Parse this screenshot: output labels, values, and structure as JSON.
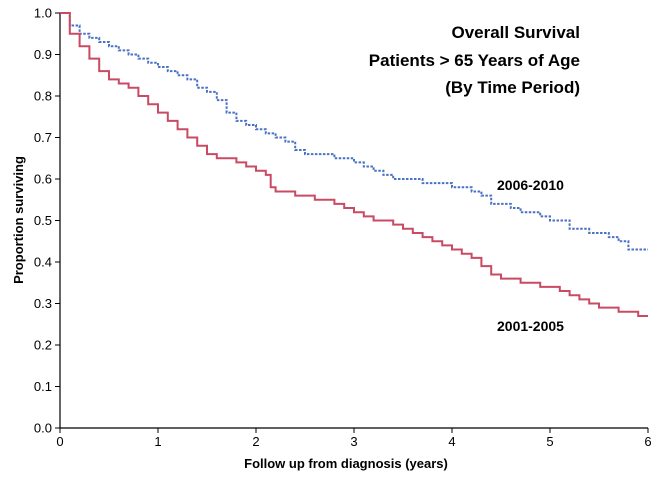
{
  "chart_data": {
    "type": "line",
    "title_lines": [
      "Overall Survival",
      "Patients > 65 Years of Age",
      "(By Time Period)"
    ],
    "xlabel": "Follow up from diagnosis (years)",
    "ylabel": "Proportion surviving",
    "xlim": [
      0,
      6
    ],
    "ylim": [
      0,
      1.0
    ],
    "x_ticks": [
      0,
      1,
      2,
      3,
      4,
      5,
      6
    ],
    "x_tick_labels": [
      "0",
      "1",
      "2",
      "3",
      "4",
      "5",
      "6"
    ],
    "y_ticks": [
      0,
      0.1,
      0.2,
      0.3,
      0.4,
      0.5,
      0.6,
      0.7,
      0.8,
      0.9,
      1.0
    ],
    "y_tick_labels": [
      "0.0",
      "0.1",
      "0.2",
      "0.3",
      "0.4",
      "0.5",
      "0.6",
      "0.7",
      "0.8",
      "0.9",
      "1.0"
    ],
    "grid": false,
    "series": [
      {
        "name": "2006-2010",
        "color": "#4a72c4",
        "line_style": "dotted-step",
        "x": [
          0,
          0.1,
          0.2,
          0.3,
          0.4,
          0.5,
          0.6,
          0.7,
          0.8,
          0.9,
          1.0,
          1.1,
          1.2,
          1.3,
          1.4,
          1.5,
          1.6,
          1.7,
          1.8,
          1.9,
          2.0,
          2.1,
          2.2,
          2.3,
          2.4,
          2.5,
          2.6,
          2.7,
          2.8,
          2.9,
          3.0,
          3.1,
          3.2,
          3.3,
          3.4,
          3.5,
          3.6,
          3.7,
          3.8,
          3.9,
          4.0,
          4.1,
          4.2,
          4.3,
          4.4,
          4.5,
          4.6,
          4.7,
          4.8,
          4.9,
          5.0,
          5.2,
          5.4,
          5.5,
          5.6,
          5.7,
          5.8,
          6.0
        ],
        "y": [
          1.0,
          0.97,
          0.95,
          0.94,
          0.93,
          0.92,
          0.91,
          0.9,
          0.89,
          0.88,
          0.87,
          0.86,
          0.85,
          0.84,
          0.82,
          0.81,
          0.79,
          0.76,
          0.74,
          0.73,
          0.72,
          0.71,
          0.7,
          0.69,
          0.67,
          0.66,
          0.66,
          0.66,
          0.65,
          0.65,
          0.64,
          0.63,
          0.62,
          0.61,
          0.6,
          0.6,
          0.6,
          0.59,
          0.59,
          0.59,
          0.58,
          0.58,
          0.57,
          0.56,
          0.54,
          0.54,
          0.53,
          0.52,
          0.52,
          0.51,
          0.5,
          0.48,
          0.47,
          0.47,
          0.46,
          0.45,
          0.43,
          0.43
        ]
      },
      {
        "name": "2001-2005",
        "color": "#c94a63",
        "line_style": "solid-step",
        "x": [
          0,
          0.1,
          0.2,
          0.3,
          0.4,
          0.5,
          0.6,
          0.7,
          0.8,
          0.9,
          1.0,
          1.1,
          1.2,
          1.3,
          1.4,
          1.5,
          1.6,
          1.7,
          1.8,
          1.9,
          2.0,
          2.1,
          2.15,
          2.2,
          2.3,
          2.4,
          2.5,
          2.6,
          2.7,
          2.8,
          2.9,
          3.0,
          3.1,
          3.2,
          3.3,
          3.4,
          3.5,
          3.6,
          3.7,
          3.8,
          3.9,
          4.0,
          4.1,
          4.2,
          4.3,
          4.4,
          4.5,
          4.6,
          4.7,
          4.8,
          4.9,
          5.0,
          5.1,
          5.2,
          5.3,
          5.4,
          5.5,
          5.6,
          5.7,
          5.8,
          5.9,
          6.0
        ],
        "y": [
          1.0,
          0.95,
          0.92,
          0.89,
          0.86,
          0.84,
          0.83,
          0.82,
          0.8,
          0.78,
          0.76,
          0.74,
          0.72,
          0.7,
          0.68,
          0.66,
          0.65,
          0.65,
          0.64,
          0.63,
          0.62,
          0.61,
          0.58,
          0.57,
          0.57,
          0.56,
          0.56,
          0.55,
          0.55,
          0.54,
          0.53,
          0.52,
          0.51,
          0.5,
          0.5,
          0.49,
          0.48,
          0.47,
          0.46,
          0.45,
          0.44,
          0.43,
          0.42,
          0.41,
          0.39,
          0.37,
          0.36,
          0.36,
          0.35,
          0.35,
          0.34,
          0.34,
          0.33,
          0.32,
          0.31,
          0.3,
          0.29,
          0.29,
          0.28,
          0.28,
          0.27,
          0.27
        ]
      }
    ]
  }
}
